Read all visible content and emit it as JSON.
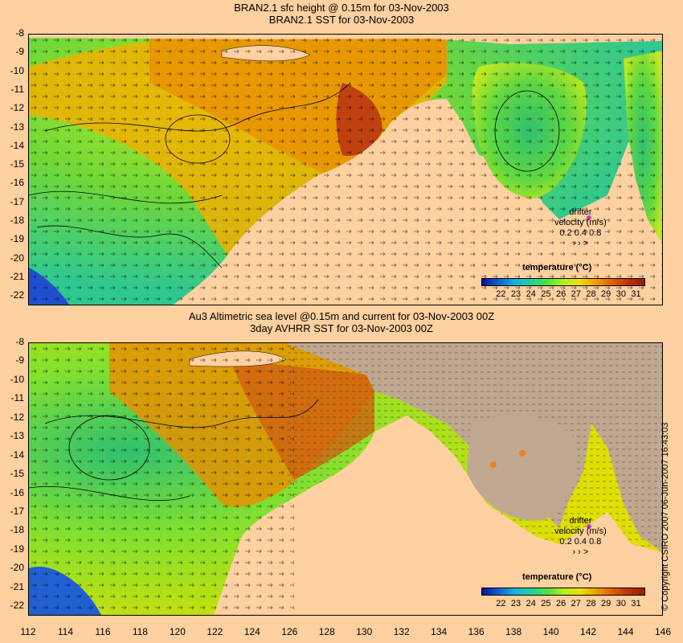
{
  "top": {
    "title_line1": "BRAN2.1 sfc height @ 0.15m for 03-Nov-2003",
    "title_line2": "BRAN2.1 SST for 03-Nov-2003",
    "legend_title": "temperature (°C)",
    "drifter": {
      "line1": "drifter",
      "line2": "velocity (m/s)",
      "line3": "0.2 0.4 0.8",
      "arrows": "›  ›  >"
    }
  },
  "bottom": {
    "title_line1": "Au3 Altimetric sea level  @0.15m and current for 03-Nov-2003 00Z",
    "title_line2": "3day AVHRR SST for 03-Nov-2003 00Z",
    "legend_title": "temperature (°C)",
    "drifter": {
      "line1": "drifter",
      "line2": "velocity (m/s)",
      "line3": "0.2 0.4 0.8",
      "arrows": "›  ›  >"
    }
  },
  "map": {
    "lat_ticks": [
      "-8",
      "-9",
      "-10",
      "-11",
      "-12",
      "-13",
      "-14",
      "-15",
      "-16",
      "-17",
      "-18",
      "-19",
      "-20",
      "-21",
      "-22"
    ],
    "lon_ticks": [
      "112",
      "114",
      "116",
      "118",
      "120",
      "122",
      "124",
      "126",
      "128",
      "130",
      "132",
      "134",
      "136",
      "138",
      "140",
      "142",
      "144",
      "146"
    ],
    "lon_range": [
      112,
      146
    ],
    "lat_range": [
      -22.5,
      -8
    ],
    "legend_ticks": [
      "22",
      "23",
      "24",
      "25",
      "26",
      "27",
      "28",
      "29",
      "30",
      "31"
    ],
    "legend_range": [
      21.5,
      32
    ],
    "colors": {
      "land": "#ffd0a0",
      "land_masked": "#c0a890",
      "ocean_cool": "#60d040",
      "ocean_warm": "#f09000",
      "hot": "#c03000",
      "cold": "#1060d0",
      "drifter_dot": "#c040c0"
    }
  },
  "copyright": "© Copyright CSIRO 2007   06-Jun-2007 16:43:03"
}
